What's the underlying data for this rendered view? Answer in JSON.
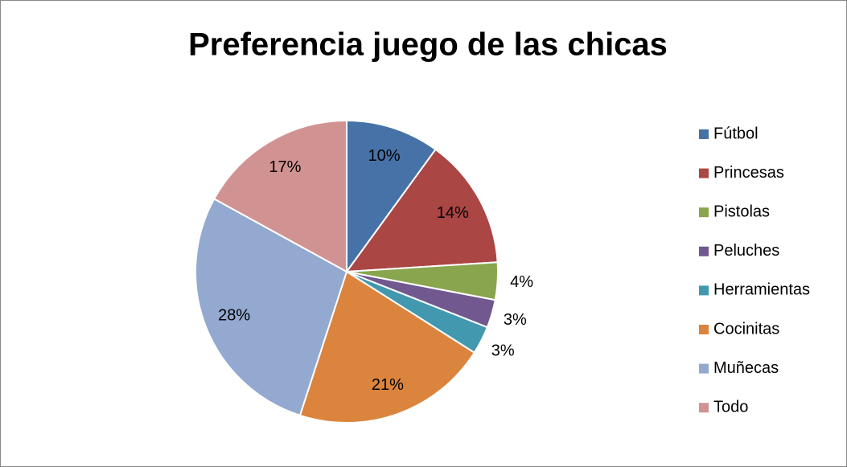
{
  "chart_data": {
    "type": "pie",
    "title": "Preferencia juego de las chicas",
    "categories": [
      "Fútbol",
      "Princesas",
      "Pistolas",
      "Peluches",
      "Herramientas",
      "Cocinitas",
      "Muñecas",
      "Todo"
    ],
    "values": [
      10,
      14,
      4,
      3,
      3,
      21,
      28,
      17
    ],
    "value_labels": [
      "10%",
      "14%",
      "4%",
      "3%",
      "3%",
      "21%",
      "28%",
      "17%"
    ],
    "colors": [
      "#4672a8",
      "#aa4644",
      "#89a54e",
      "#71588f",
      "#4198af",
      "#db843d",
      "#93a9cf",
      "#d19392"
    ],
    "legend": "right"
  }
}
